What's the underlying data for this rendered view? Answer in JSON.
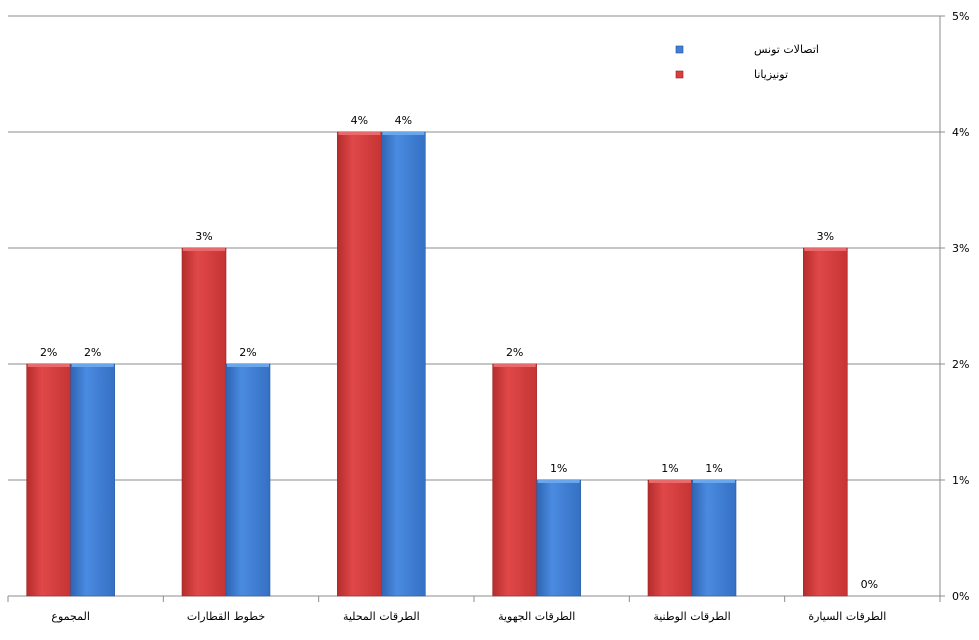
{
  "chart_data": {
    "type": "bar",
    "categories": [
      "المجموع",
      "خطوط القطارات",
      "الطرقات المحلية",
      "الطرقات الجهوية",
      "الطرقات الوطنية",
      "الطرقات السيارة"
    ],
    "series": [
      {
        "name": "تونيزيانا",
        "values": [
          2,
          3,
          4,
          2,
          1,
          3
        ],
        "labels": [
          "2%",
          "3%",
          "4%",
          "2%",
          "1%",
          "3%"
        ],
        "color": "#d84040"
      },
      {
        "name": "اتصالات تونس",
        "values": [
          2,
          2,
          4,
          1,
          1,
          0
        ],
        "labels": [
          "2%",
          "2%",
          "4%",
          "1%",
          "1%",
          "0%"
        ],
        "color": "#3f7fd6"
      }
    ],
    "yticks": [
      "0%",
      "1%",
      "2%",
      "3%",
      "4%",
      "5%"
    ],
    "ylim": [
      0,
      5
    ],
    "y_axis_side": "right",
    "grid": true,
    "legend_position": "top-right",
    "legend_order": [
      "اتصالات تونس",
      "تونيزيانا"
    ],
    "title": "",
    "xlabel": "",
    "ylabel": ""
  }
}
